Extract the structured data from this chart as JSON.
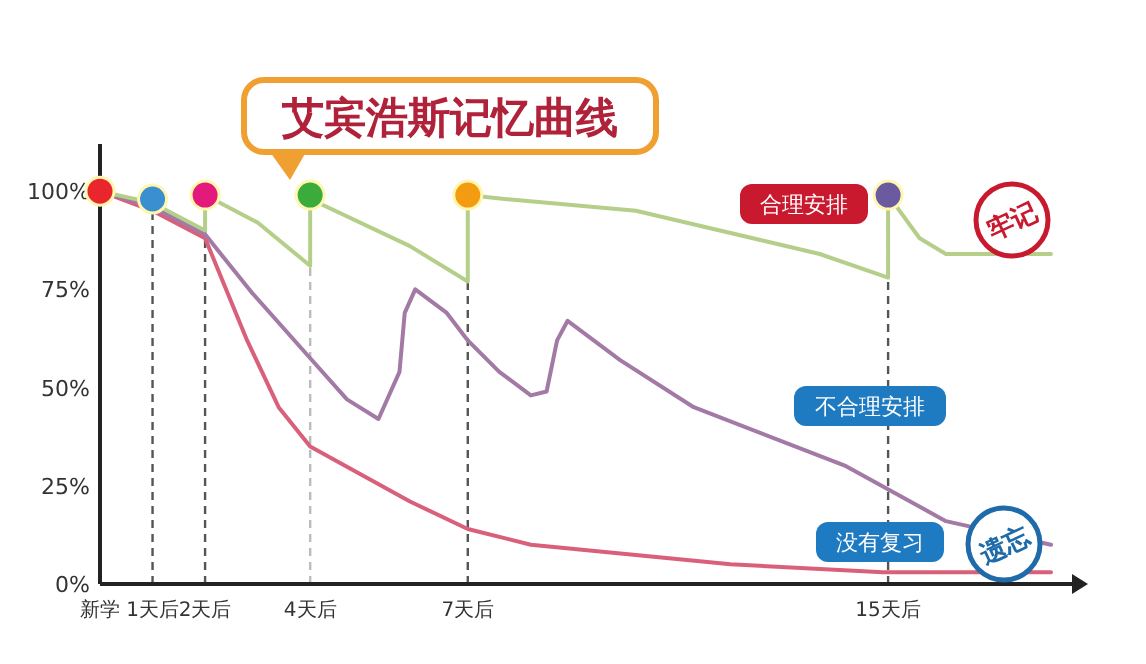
{
  "chart_data": {
    "type": "line",
    "title": "艾宾浩斯记忆曲线",
    "xlim": [
      0,
      18.5
    ],
    "ylim": [
      0,
      112
    ],
    "xticks": [
      {
        "value": 0,
        "label": "新学"
      },
      {
        "value": 1,
        "label": "1天后"
      },
      {
        "value": 2,
        "label": "2天后"
      },
      {
        "value": 4,
        "label": "4天后"
      },
      {
        "value": 7,
        "label": "7天后"
      },
      {
        "value": 15,
        "label": "15天后"
      }
    ],
    "yticks": [
      {
        "value": 0,
        "label": "0%"
      },
      {
        "value": 25,
        "label": "25%"
      },
      {
        "value": 50,
        "label": "50%"
      },
      {
        "value": 75,
        "label": "75%"
      },
      {
        "value": 100,
        "label": "100%"
      }
    ],
    "grid": false,
    "ref_lines": [
      {
        "axis": "x",
        "value": 1,
        "line_style": "dashed",
        "color": "#555555"
      },
      {
        "axis": "x",
        "value": 2,
        "line_style": "dashed",
        "color": "#555555"
      },
      {
        "axis": "x",
        "value": 4,
        "line_style": "dashed",
        "color": "#bbbbbb"
      },
      {
        "axis": "x",
        "value": 7,
        "line_style": "dashed",
        "color": "#555555"
      },
      {
        "axis": "x",
        "value": 15,
        "line_style": "dashed",
        "color": "#555555"
      }
    ],
    "series": [
      {
        "color": "#d9607a",
        "x": [
          0,
          1,
          2,
          2.8,
          3.4,
          4,
          5.9,
          7,
          8.2,
          12,
          14.9,
          18.1
        ],
        "values": [
          100,
          95,
          88,
          62,
          45,
          35,
          21,
          14,
          10,
          5,
          3,
          3
        ]
      },
      {
        "color": "#a27aa5",
        "x": [
          0,
          1,
          2,
          2.9,
          3.9,
          4.7,
          5.3,
          5.7,
          5.8,
          6,
          6.6,
          7,
          7.6,
          8.2,
          8.5,
          8.7,
          8.9,
          9.9,
          11.3,
          14.2,
          16.1,
          18.1
        ],
        "values": [
          100,
          96,
          89,
          74,
          59,
          47,
          42,
          54,
          69,
          75,
          69,
          62,
          54,
          48,
          49,
          62,
          67,
          57,
          45,
          30,
          16,
          10
        ]
      },
      {
        "color": "#b5cf8a",
        "x": [
          0,
          1,
          2,
          2,
          3,
          4,
          4,
          5.9,
          7,
          7,
          7.7,
          10.2,
          13.7,
          15,
          15,
          15.6,
          16.1,
          18.1
        ],
        "values": [
          100,
          97,
          90,
          99,
          92,
          81,
          98,
          86,
          77,
          99,
          98,
          95,
          84,
          78,
          99,
          88,
          84,
          84
        ]
      },
      {
        "type": "scatter",
        "marker": "circle",
        "x": [
          0,
          1,
          2,
          4,
          7,
          15
        ],
        "values": [
          100,
          98,
          99,
          99,
          99,
          99
        ],
        "colors": [
          "#e8262b",
          "#3a8fd0",
          "#e3197b",
          "#3bab3b",
          "#f39c12",
          "#6c5aa0"
        ]
      }
    ],
    "annotations": [
      "合理安排",
      "不合理安排",
      "没有复习",
      "牢记",
      "遗忘"
    ]
  }
}
